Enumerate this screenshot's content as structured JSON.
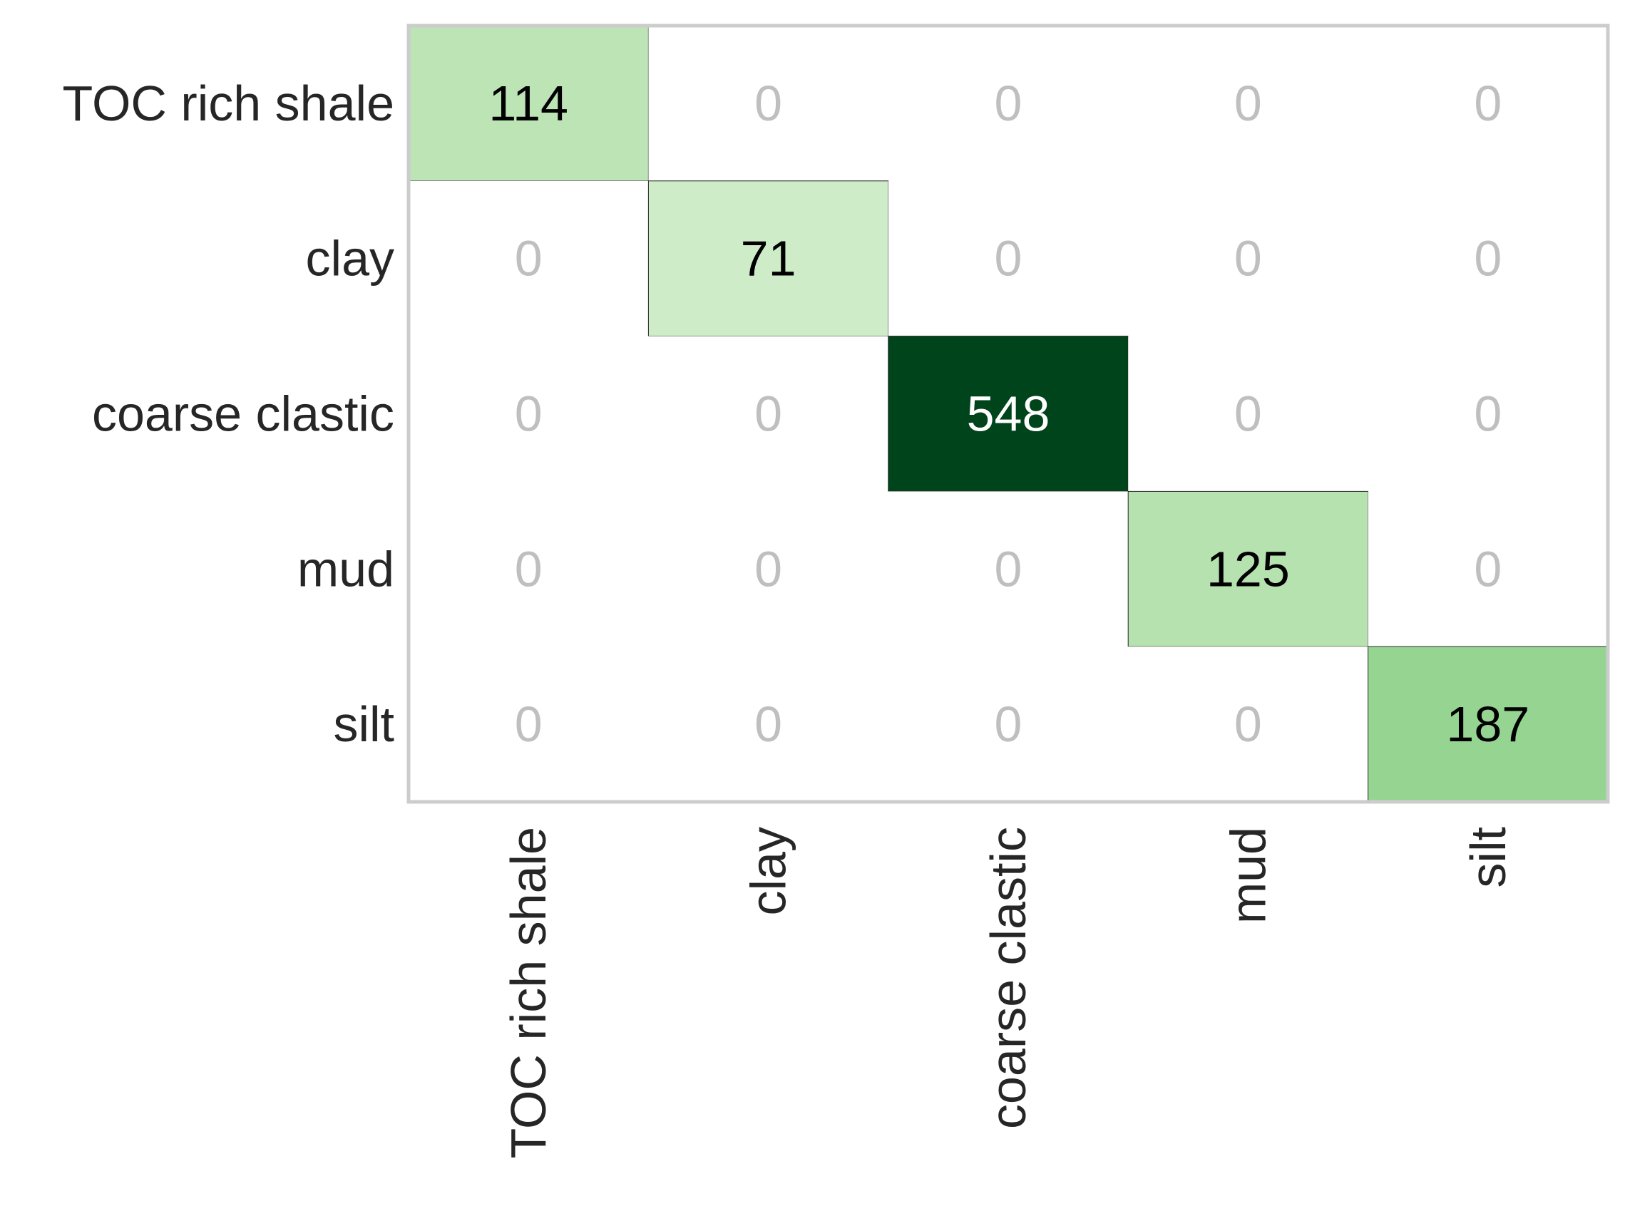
{
  "chart_data": {
    "type": "heatmap",
    "title": "",
    "xlabel": "",
    "ylabel": "",
    "row_labels": [
      "TOC rich shale",
      "clay",
      "coarse clastic",
      "mud",
      "silt"
    ],
    "col_labels": [
      "TOC rich shale",
      "clay",
      "coarse clastic",
      "mud",
      "silt"
    ],
    "values": [
      [
        114,
        0,
        0,
        0,
        0
      ],
      [
        0,
        71,
        0,
        0,
        0
      ],
      [
        0,
        0,
        548,
        0,
        0
      ],
      [
        0,
        0,
        0,
        125,
        0
      ],
      [
        0,
        0,
        0,
        0,
        187
      ]
    ],
    "colormap": "Greens",
    "zero_cell_color": "#ffffff",
    "zero_text_color": "#bfbfbf",
    "frame_color": "#cccccc",
    "grid": false,
    "legend": "none"
  }
}
